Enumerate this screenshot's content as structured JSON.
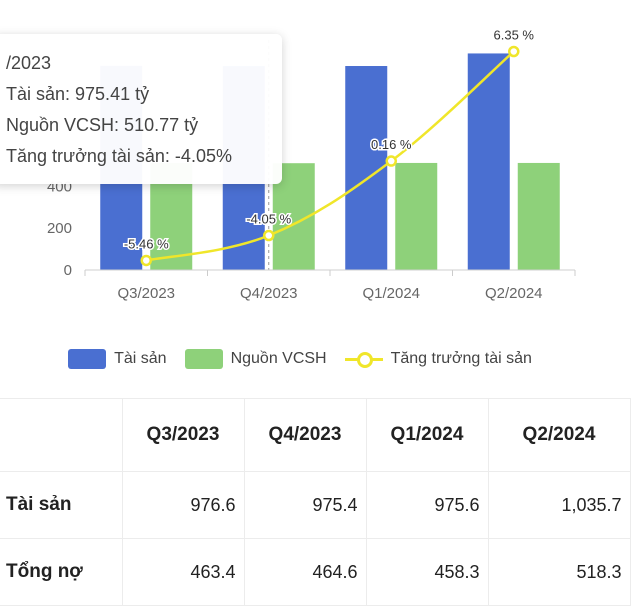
{
  "chart_data": {
    "type": "bar",
    "categories": [
      "Q3/2023",
      "Q4/2023",
      "Q1/2024",
      "Q2/2024"
    ],
    "series": [
      {
        "name": "Tài sản",
        "kind": "bar",
        "color": "#4a6fd1",
        "values": [
          976.6,
          975.4,
          975.6,
          1035.7
        ]
      },
      {
        "name": "Nguồn VCSH",
        "kind": "bar",
        "color": "#8ed17a",
        "values": [
          512.0,
          510.77,
          512.0,
          512.0
        ]
      },
      {
        "name": "Tăng trưởng tài sản",
        "kind": "line",
        "color": "#f0e62a",
        "values": [
          -5.46,
          -4.05,
          0.16,
          6.35
        ],
        "labels": [
          "-5.46 %",
          "-4.05 %",
          "0.16 %",
          "6.35 %"
        ]
      }
    ],
    "yticks": [
      "0",
      "200",
      "400"
    ],
    "ylim": [
      0,
      1100
    ],
    "line_range": [
      -6.0,
      7.0
    ],
    "grid": false,
    "legend": "bottom"
  },
  "tooltip": {
    "title": "/2023",
    "lines": [
      "Tài sản: 975.41 tỷ",
      "Nguồn VCSH: 510.77 tỷ",
      "Tăng trưởng tài sản: -4.05%"
    ]
  },
  "table": {
    "headers": [
      "",
      "Q3/2023",
      "Q4/2023",
      "Q1/2024",
      "Q2/2024"
    ],
    "rows": [
      {
        "label": "Tài sản",
        "values": [
          "976.6",
          "975.4",
          "975.6",
          "1,035.7"
        ]
      },
      {
        "label": "Tổng nợ",
        "values": [
          "463.4",
          "464.6",
          "458.3",
          "518.3"
        ]
      }
    ]
  }
}
